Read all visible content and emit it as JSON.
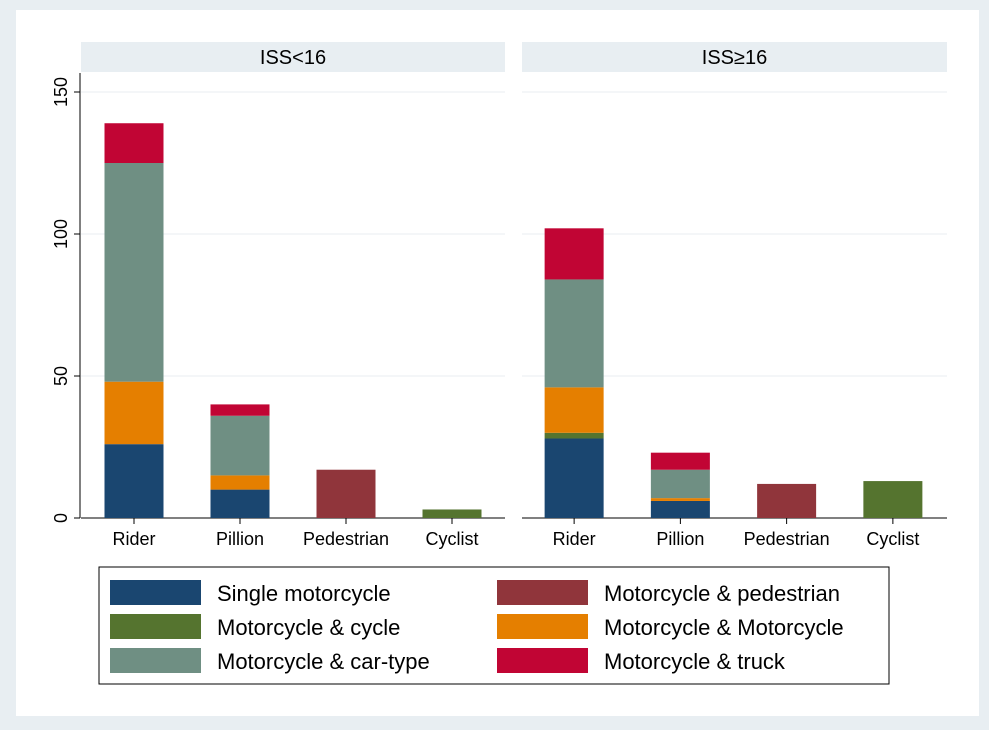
{
  "chart_data": {
    "type": "bar",
    "stacked": true,
    "panels": [
      "ISS<16",
      "ISS≥16"
    ],
    "categories": [
      "Rider",
      "Pillion",
      "Pedestrian",
      "Cyclist"
    ],
    "y_ticks": [
      "0",
      "50",
      "100",
      "150"
    ],
    "ylim": [
      0,
      150
    ],
    "grid": true,
    "legend_position": "bottom",
    "series": [
      {
        "name": "Single motorcycle",
        "color": "#1a4670",
        "values": {
          "ISS<16": [
            26,
            10,
            0,
            0
          ],
          "ISS≥16": [
            28,
            6,
            0,
            0
          ]
        }
      },
      {
        "name": "Motorcycle & cycle",
        "color": "#55742f",
        "values": {
          "ISS<16": [
            0,
            0,
            0,
            3
          ],
          "ISS≥16": [
            2,
            0,
            0,
            13
          ]
        }
      },
      {
        "name": "Motorcycle & Motorcycle",
        "color": "#e57f00",
        "values": {
          "ISS<16": [
            22,
            5,
            0,
            0
          ],
          "ISS≥16": [
            16,
            1,
            0,
            0
          ]
        }
      },
      {
        "name": "Motorcycle & car-type",
        "color": "#6f8f83",
        "values": {
          "ISS<16": [
            77,
            21,
            0,
            0
          ],
          "ISS≥16": [
            38,
            10,
            0,
            0
          ]
        }
      },
      {
        "name": "Motorcycle & pedestrian",
        "color": "#90353b",
        "values": {
          "ISS<16": [
            0,
            0,
            17,
            0
          ],
          "ISS≥16": [
            0,
            0,
            12,
            0
          ]
        }
      },
      {
        "name": "Motorcycle & truck",
        "color": "#c10534",
        "values": {
          "ISS<16": [
            14,
            4,
            0,
            0
          ],
          "ISS≥16": [
            18,
            6,
            0,
            0
          ]
        }
      }
    ],
    "legend_order": [
      "Single motorcycle",
      "Motorcycle & pedestrian",
      "Motorcycle & cycle",
      "Motorcycle & Motorcycle",
      "Motorcycle & car-type",
      "Motorcycle & truck"
    ]
  }
}
